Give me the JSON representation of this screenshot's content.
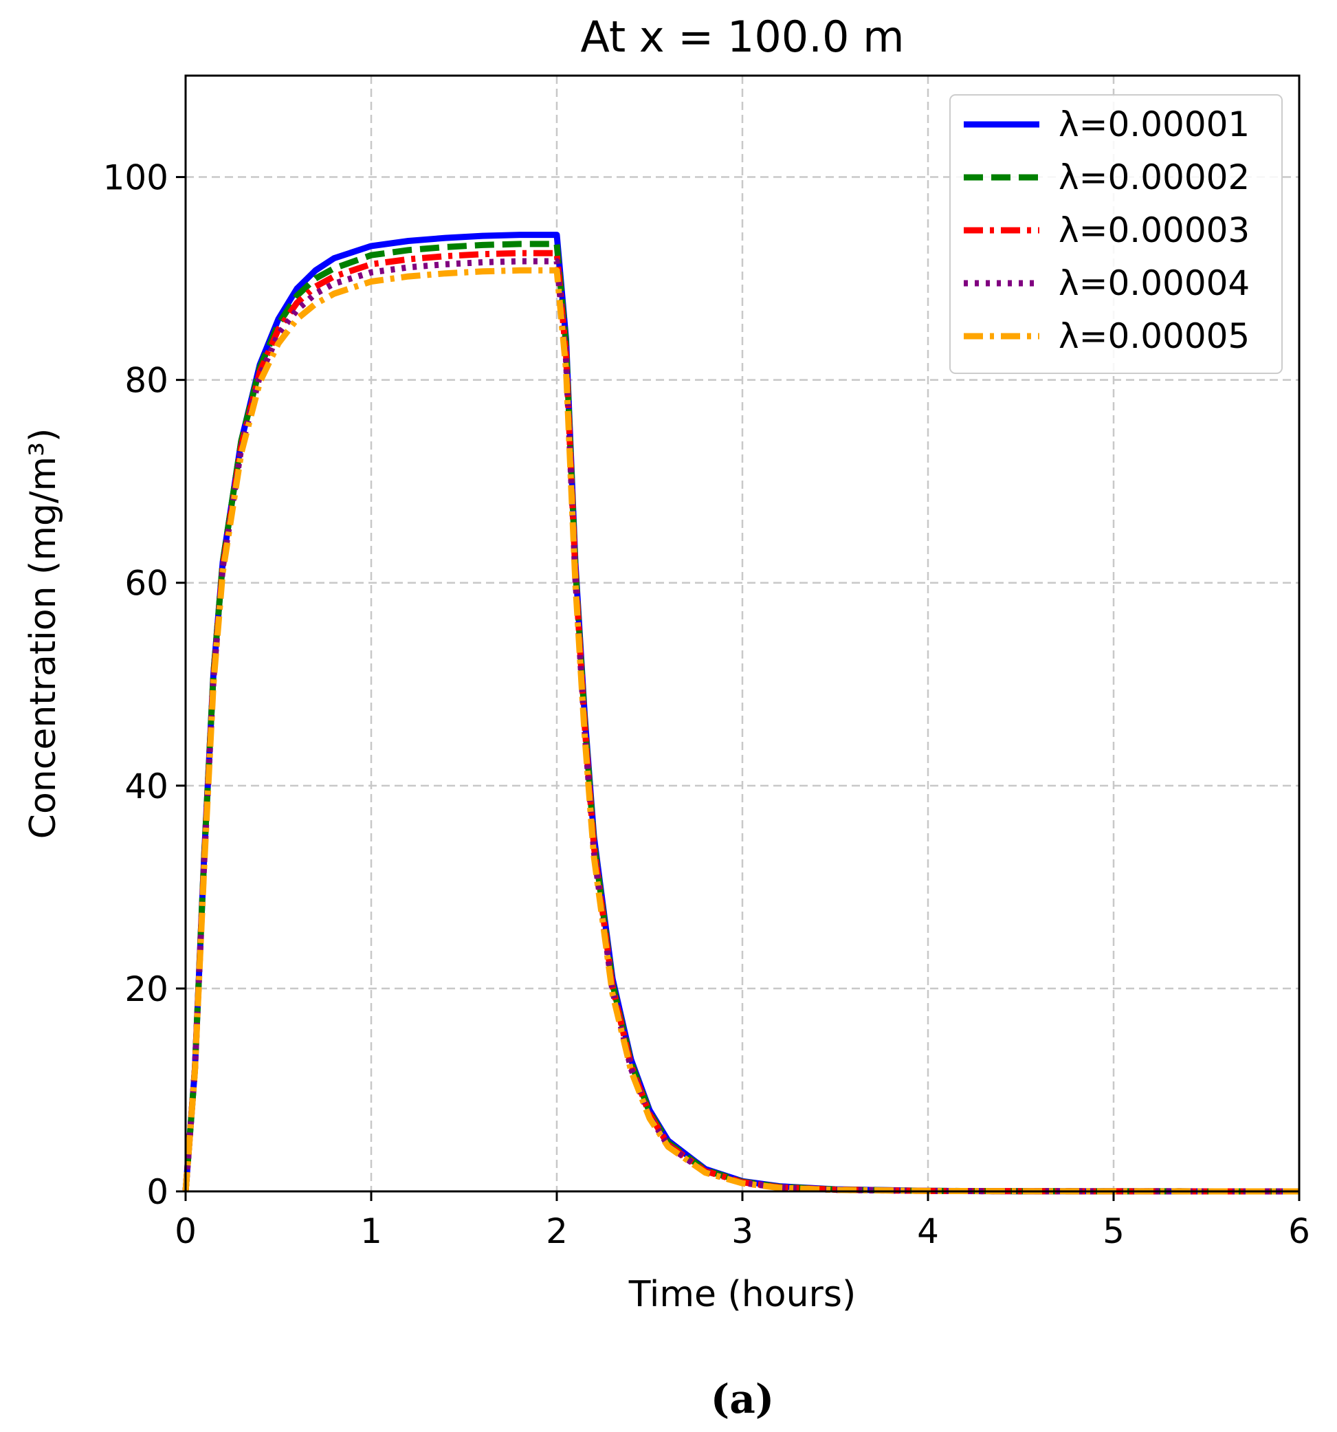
{
  "chart_data": {
    "type": "line",
    "title": "At x = 100.0 m",
    "xlabel": "Time (hours)",
    "ylabel": "Concentration (mg/m³)",
    "xlim": [
      0,
      6
    ],
    "ylim": [
      0,
      110
    ],
    "xticks": [
      "0",
      "1",
      "2",
      "3",
      "4",
      "5",
      "6"
    ],
    "yticks": [
      "0",
      "20",
      "40",
      "60",
      "80",
      "100"
    ],
    "grid": true,
    "legend_position": "top-right",
    "x": [
      0,
      0.05,
      0.1,
      0.15,
      0.2,
      0.3,
      0.4,
      0.5,
      0.6,
      0.7,
      0.8,
      1.0,
      1.2,
      1.4,
      1.6,
      1.8,
      2.0,
      2.05,
      2.1,
      2.15,
      2.2,
      2.3,
      2.4,
      2.5,
      2.6,
      2.8,
      3.0,
      3.2,
      3.5,
      4.0,
      4.5,
      5.0,
      6.0
    ],
    "series": [
      {
        "name": "λ=0.00001",
        "color": "#0000ff",
        "style": "solid",
        "values": [
          0,
          12,
          33,
          51,
          62,
          74,
          81.5,
          86,
          89,
          90.8,
          92,
          93.2,
          93.7,
          94.0,
          94.2,
          94.3,
          94.3,
          84,
          62,
          47,
          35,
          21,
          13,
          8,
          5,
          2.2,
          1.0,
          0.5,
          0.2,
          0.05,
          0.02,
          0.01,
          0
        ]
      },
      {
        "name": "λ=0.00002",
        "color": "#008000",
        "style": "dashed",
        "values": [
          0,
          12,
          33,
          51,
          62,
          74,
          81.2,
          85.5,
          88.3,
          90,
          91,
          92.3,
          92.8,
          93.1,
          93.3,
          93.4,
          93.4,
          83.5,
          61.5,
          46.5,
          34.5,
          20.5,
          12.7,
          7.8,
          4.8,
          2.1,
          0.95,
          0.45,
          0.18,
          0.05,
          0.02,
          0.01,
          0
        ]
      },
      {
        "name": "λ=0.00003",
        "color": "#ff0000",
        "style": "dashdot",
        "values": [
          0,
          12,
          32.5,
          50.5,
          61.5,
          73.5,
          80.8,
          85,
          87.6,
          89.2,
          90.2,
          91.4,
          91.9,
          92.2,
          92.4,
          92.5,
          92.5,
          82.5,
          61,
          46,
          34,
          20.2,
          12.4,
          7.6,
          4.6,
          2.0,
          0.9,
          0.4,
          0.17,
          0.04,
          0.02,
          0.01,
          0
        ]
      },
      {
        "name": "λ=0.00004",
        "color": "#800080",
        "style": "dotted",
        "values": [
          0,
          12,
          32.5,
          50.5,
          61.5,
          73.3,
          80.4,
          84.5,
          86.9,
          88.5,
          89.5,
          90.6,
          91.1,
          91.4,
          91.6,
          91.7,
          91.7,
          82,
          60.5,
          45.5,
          33.5,
          19.8,
          12.1,
          7.4,
          4.5,
          1.9,
          0.85,
          0.38,
          0.15,
          0.04,
          0.02,
          0.01,
          0
        ]
      },
      {
        "name": "λ=0.00005",
        "color": "#ffa500",
        "style": "dashdot",
        "values": [
          0,
          11.8,
          32,
          50,
          61,
          72.8,
          79.8,
          83.6,
          86,
          87.5,
          88.5,
          89.7,
          90.2,
          90.5,
          90.7,
          90.8,
          90.8,
          81,
          60,
          45,
          33,
          19.5,
          11.9,
          7.2,
          4.4,
          1.85,
          0.8,
          0.35,
          0.14,
          0.04,
          0.02,
          0.01,
          0
        ]
      }
    ]
  },
  "caption": "(a)"
}
